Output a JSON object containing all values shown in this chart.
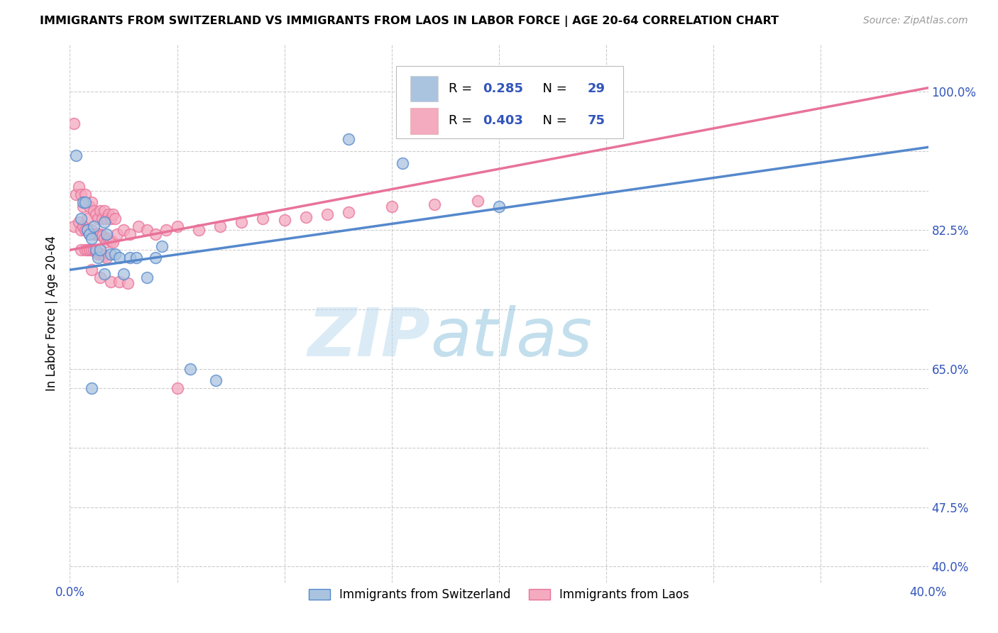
{
  "title": "IMMIGRANTS FROM SWITZERLAND VS IMMIGRANTS FROM LAOS IN LABOR FORCE | AGE 20-64 CORRELATION CHART",
  "source": "Source: ZipAtlas.com",
  "ylabel": "In Labor Force | Age 20-64",
  "xlim": [
    0.0,
    0.4
  ],
  "ylim": [
    0.38,
    1.06
  ],
  "r_switzerland": 0.285,
  "n_switzerland": 29,
  "r_laos": 0.403,
  "n_laos": 75,
  "color_switzerland": "#aac4e0",
  "color_laos": "#f4aabf",
  "line_color_switzerland": "#5588cc",
  "line_color_laos": "#e8729a",
  "legend_text_color": "#3355bb",
  "watermark_color": "#cce4f5",
  "bg_color": "#ffffff",
  "sw_line_x0": 0.0,
  "sw_line_y0": 0.775,
  "sw_line_x1": 0.4,
  "sw_line_y1": 0.93,
  "la_line_x0": 0.0,
  "la_line_y0": 0.8,
  "la_line_x1": 0.4,
  "la_line_y1": 1.005,
  "sw_x": [
    0.003,
    0.005,
    0.006,
    0.007,
    0.008,
    0.009,
    0.01,
    0.011,
    0.012,
    0.013,
    0.014,
    0.016,
    0.017,
    0.019,
    0.021,
    0.023,
    0.025,
    0.028,
    0.031,
    0.036,
    0.043,
    0.056,
    0.068,
    0.13,
    0.155,
    0.2,
    0.01,
    0.016,
    0.04
  ],
  "sw_y": [
    0.92,
    0.84,
    0.86,
    0.86,
    0.825,
    0.82,
    0.815,
    0.83,
    0.8,
    0.79,
    0.8,
    0.835,
    0.82,
    0.795,
    0.795,
    0.79,
    0.77,
    0.79,
    0.79,
    0.765,
    0.805,
    0.65,
    0.635,
    0.94,
    0.91,
    0.855,
    0.625,
    0.77,
    0.79
  ],
  "la_x": [
    0.002,
    0.003,
    0.004,
    0.005,
    0.006,
    0.007,
    0.008,
    0.009,
    0.01,
    0.011,
    0.012,
    0.013,
    0.014,
    0.015,
    0.016,
    0.017,
    0.018,
    0.019,
    0.02,
    0.021,
    0.002,
    0.004,
    0.005,
    0.006,
    0.007,
    0.008,
    0.009,
    0.01,
    0.011,
    0.012,
    0.013,
    0.014,
    0.015,
    0.016,
    0.017,
    0.018,
    0.019,
    0.02,
    0.005,
    0.007,
    0.008,
    0.009,
    0.01,
    0.011,
    0.012,
    0.013,
    0.014,
    0.015,
    0.016,
    0.017,
    0.022,
    0.025,
    0.028,
    0.032,
    0.036,
    0.04,
    0.045,
    0.05,
    0.06,
    0.07,
    0.08,
    0.09,
    0.1,
    0.11,
    0.12,
    0.13,
    0.15,
    0.17,
    0.19,
    0.01,
    0.014,
    0.019,
    0.023,
    0.027,
    0.05
  ],
  "la_y": [
    0.96,
    0.87,
    0.88,
    0.87,
    0.855,
    0.87,
    0.84,
    0.855,
    0.86,
    0.85,
    0.845,
    0.84,
    0.85,
    0.84,
    0.85,
    0.84,
    0.845,
    0.84,
    0.845,
    0.84,
    0.83,
    0.835,
    0.825,
    0.83,
    0.825,
    0.825,
    0.82,
    0.825,
    0.82,
    0.82,
    0.82,
    0.82,
    0.818,
    0.815,
    0.81,
    0.815,
    0.812,
    0.81,
    0.8,
    0.8,
    0.8,
    0.8,
    0.8,
    0.8,
    0.798,
    0.795,
    0.795,
    0.795,
    0.793,
    0.79,
    0.82,
    0.825,
    0.82,
    0.83,
    0.825,
    0.82,
    0.825,
    0.83,
    0.825,
    0.83,
    0.835,
    0.84,
    0.838,
    0.842,
    0.845,
    0.848,
    0.855,
    0.858,
    0.862,
    0.775,
    0.765,
    0.76,
    0.76,
    0.758,
    0.625
  ],
  "ytick_positions": [
    0.4,
    0.475,
    0.55,
    0.625,
    0.65,
    0.725,
    0.8,
    0.825,
    0.875,
    0.925,
    1.0
  ],
  "ytick_labels": [
    "",
    "",
    "",
    "",
    "65.0%",
    "",
    "",
    "82.5%",
    "",
    "",
    "100.0%"
  ],
  "ytick_right_positions": [
    0.4,
    0.475,
    0.65,
    0.825,
    1.0
  ],
  "ytick_right_labels": [
    "40.0%",
    "47.5%",
    "65.0%",
    "82.5%",
    "100.0%"
  ]
}
